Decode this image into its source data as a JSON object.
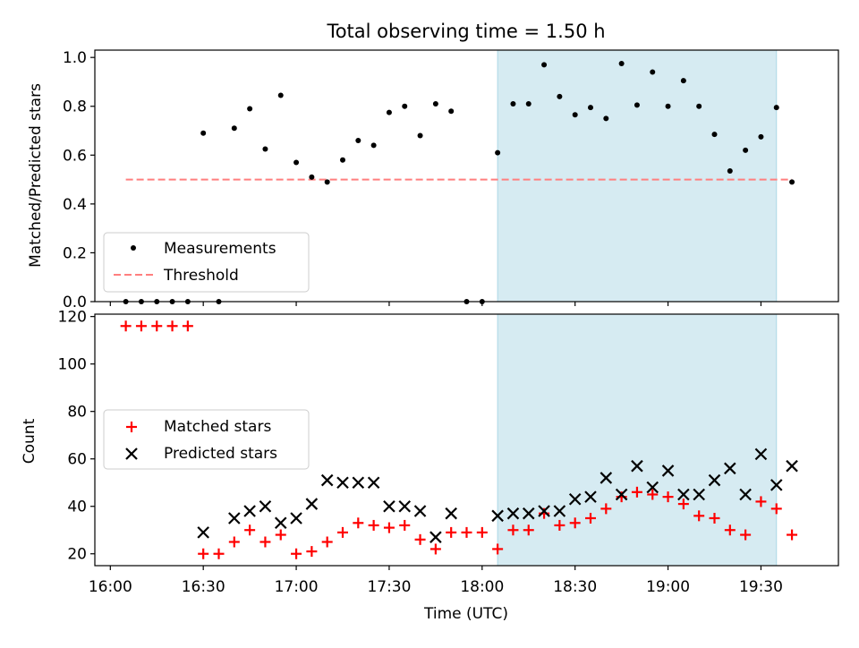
{
  "chart_data": [
    {
      "type": "scatter",
      "title": "Total observing time = 1.50 h",
      "xlabel": "",
      "ylabel": "Matched/Predicted stars",
      "xlim": [
        "15:55",
        "19:55"
      ],
      "ylim": [
        0,
        1.03
      ],
      "yticks": [
        "0.0",
        "0.2",
        "0.4",
        "0.6",
        "0.8",
        "1.0"
      ],
      "legend_position": "lower-left",
      "shaded_region": [
        "18:05",
        "19:35"
      ],
      "series": [
        {
          "name": "Measurements",
          "marker": "dot",
          "color": "#000000",
          "x": [
            "16:05",
            "16:10",
            "16:15",
            "16:20",
            "16:25",
            "16:30",
            "16:35",
            "16:40",
            "16:45",
            "16:50",
            "16:55",
            "17:00",
            "17:05",
            "17:10",
            "17:15",
            "17:20",
            "17:25",
            "17:30",
            "17:35",
            "17:40",
            "17:45",
            "17:50",
            "17:55",
            "18:00",
            "18:05",
            "18:10",
            "18:15",
            "18:20",
            "18:25",
            "18:30",
            "18:35",
            "18:40",
            "18:45",
            "18:50",
            "18:55",
            "19:00",
            "19:05",
            "19:10",
            "19:15",
            "19:20",
            "19:25",
            "19:30",
            "19:35",
            "19:40"
          ],
          "y": [
            0,
            0,
            0,
            0,
            0,
            0.69,
            0,
            0.71,
            0.79,
            0.625,
            0.845,
            0.57,
            0.51,
            0.49,
            0.58,
            0.66,
            0.64,
            0.775,
            0.8,
            0.68,
            0.81,
            0.78,
            0,
            0,
            0.61,
            0.81,
            0.81,
            0.97,
            0.84,
            0.765,
            0.795,
            0.75,
            0.975,
            0.805,
            0.94,
            0.8,
            0.905,
            0.8,
            0.685,
            0.535,
            0.62,
            0.675,
            0.795,
            0.49
          ]
        },
        {
          "name": "Threshold",
          "marker": "dashed-line",
          "color": "#ff7f7f",
          "x": [
            "16:05",
            "19:40"
          ],
          "y": [
            0.5,
            0.5
          ]
        }
      ]
    },
    {
      "type": "scatter",
      "title": "",
      "xlabel": "Time (UTC)",
      "ylabel": "Count",
      "xlim": [
        "15:55",
        "19:55"
      ],
      "ylim": [
        15,
        121
      ],
      "yticks": [
        "20",
        "40",
        "60",
        "80",
        "100",
        "120"
      ],
      "xticks": [
        "16:00",
        "16:30",
        "17:00",
        "17:30",
        "18:00",
        "18:30",
        "19:00",
        "19:30"
      ],
      "legend_position": "center-left",
      "shaded_region": [
        "18:05",
        "19:35"
      ],
      "series": [
        {
          "name": "Matched stars",
          "marker": "plus",
          "color": "#ff0000",
          "x": [
            "16:05",
            "16:10",
            "16:15",
            "16:20",
            "16:25",
            "16:30",
            "16:35",
            "16:40",
            "16:45",
            "16:50",
            "16:55",
            "17:00",
            "17:05",
            "17:10",
            "17:15",
            "17:20",
            "17:25",
            "17:30",
            "17:35",
            "17:40",
            "17:45",
            "17:50",
            "17:55",
            "18:00",
            "18:05",
            "18:10",
            "18:15",
            "18:20",
            "18:25",
            "18:30",
            "18:35",
            "18:40",
            "18:45",
            "18:50",
            "18:55",
            "19:00",
            "19:05",
            "19:10",
            "19:15",
            "19:20",
            "19:25",
            "19:30",
            "19:35",
            "19:40"
          ],
          "y": [
            116,
            116,
            116,
            116,
            116,
            20,
            20,
            25,
            30,
            25,
            28,
            20,
            21,
            25,
            29,
            33,
            32,
            31,
            32,
            26,
            22,
            29,
            29,
            29,
            22,
            30,
            30,
            37,
            32,
            33,
            35,
            39,
            44,
            46,
            45,
            44,
            41,
            36,
            35,
            30,
            28,
            42,
            39,
            28
          ]
        },
        {
          "name": "Predicted stars",
          "marker": "x",
          "color": "#000000",
          "x": [
            "16:30",
            "16:40",
            "16:45",
            "16:50",
            "16:55",
            "17:00",
            "17:05",
            "17:10",
            "17:15",
            "17:20",
            "17:25",
            "17:30",
            "17:35",
            "17:40",
            "17:45",
            "17:50",
            "18:05",
            "18:10",
            "18:15",
            "18:20",
            "18:25",
            "18:30",
            "18:35",
            "18:40",
            "18:45",
            "18:50",
            "18:55",
            "19:00",
            "19:05",
            "19:10",
            "19:15",
            "19:20",
            "19:25",
            "19:30",
            "19:35",
            "19:40"
          ],
          "y": [
            29,
            35,
            38,
            40,
            33,
            35,
            41,
            51,
            50,
            50,
            50,
            40,
            40,
            38,
            27,
            37,
            36,
            37,
            37,
            38,
            38,
            43,
            44,
            52,
            45,
            57,
            48,
            55,
            45,
            45,
            51,
            56,
            45,
            62,
            49,
            57
          ]
        }
      ]
    }
  ]
}
